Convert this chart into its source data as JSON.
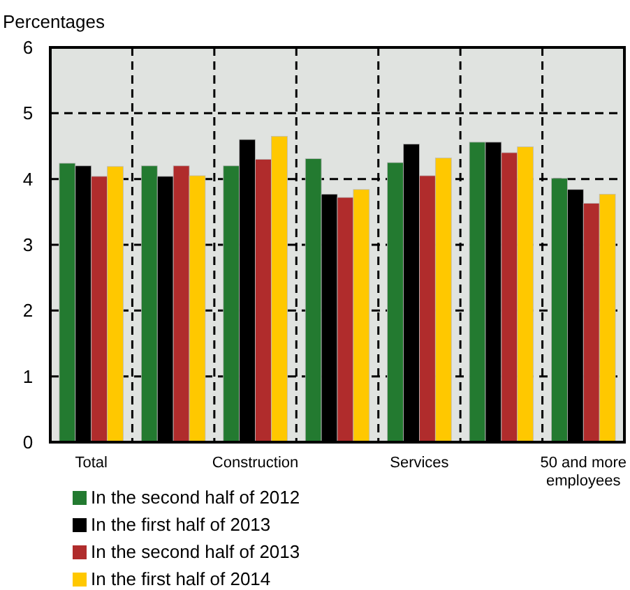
{
  "chart_data": {
    "type": "bar",
    "ylabel": "Percentages",
    "categories": [
      "Total",
      null,
      "Construction",
      null,
      "Services",
      null,
      "50 and more employees"
    ],
    "ylim": [
      0,
      6
    ],
    "yticks": [
      0,
      1,
      2,
      3,
      4,
      5,
      6
    ],
    "grid": true,
    "legend": "bottom left",
    "series": [
      {
        "name": "In the second half of 2012",
        "color": "#237a30",
        "values": [
          4.24,
          4.2,
          4.2,
          4.31,
          4.25,
          4.56,
          4.01
        ]
      },
      {
        "name": "In the first half of 2013",
        "color": "#000000",
        "values": [
          4.2,
          4.04,
          4.6,
          3.77,
          4.53,
          4.56,
          3.84
        ]
      },
      {
        "name": "In the second half of 2013",
        "color": "#b02c2c",
        "values": [
          4.04,
          4.2,
          4.3,
          3.72,
          4.05,
          4.4,
          3.63
        ]
      },
      {
        "name": "In the first half of 2014",
        "color": "#ffc800",
        "values": [
          4.19,
          4.05,
          4.65,
          3.84,
          4.32,
          4.49,
          3.77
        ]
      }
    ]
  }
}
